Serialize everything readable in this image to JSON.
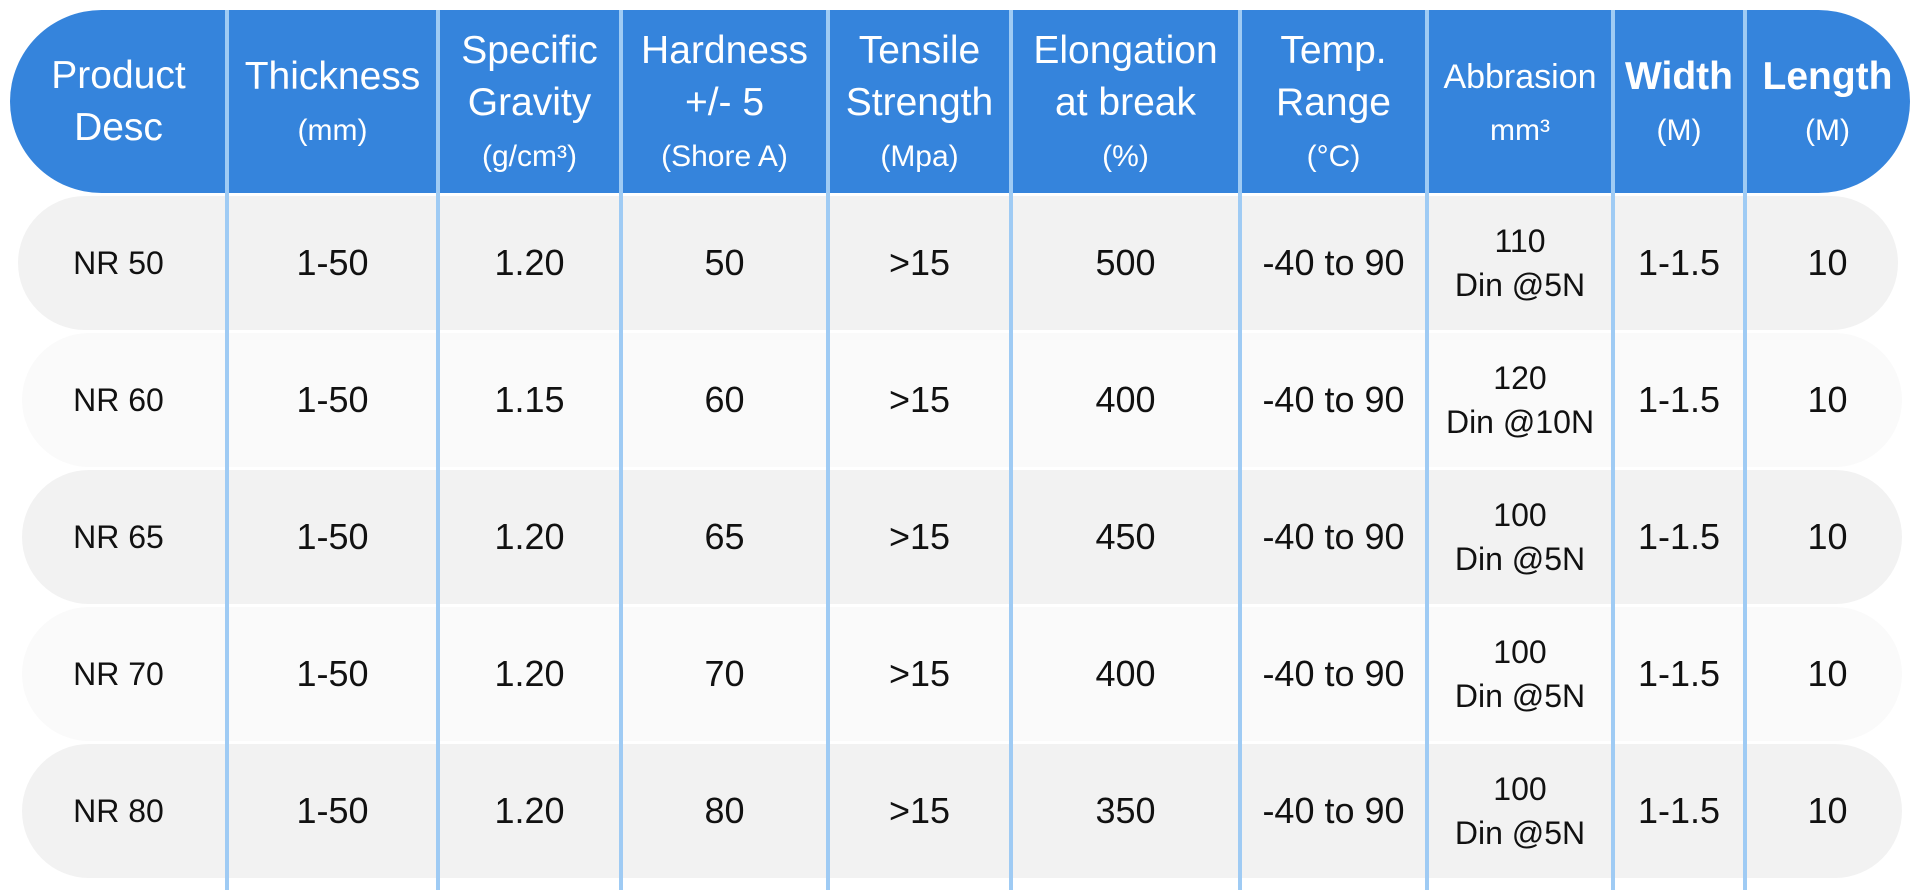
{
  "table": {
    "header": [
      {
        "title": [
          "Product",
          "Desc"
        ]
      },
      {
        "title": [
          "Thickness"
        ],
        "unit": "(mm)"
      },
      {
        "title": [
          "Specific",
          "Gravity"
        ],
        "unit": "(g/cm³)"
      },
      {
        "title": [
          "Hardness",
          "+/- 5"
        ],
        "unit": "(Shore A)"
      },
      {
        "title": [
          "Tensile",
          "Strength"
        ],
        "unit": "(Mpa)"
      },
      {
        "title": [
          "Elongation",
          "at break"
        ],
        "unit": "(%)"
      },
      {
        "title": [
          "Temp.",
          "Range"
        ],
        "unit": "(°C)"
      },
      {
        "title": [
          "Abbrasion"
        ],
        "unit": "mm³"
      },
      {
        "title": [
          "Width"
        ],
        "unit": "(M)"
      },
      {
        "title": [
          "Length"
        ],
        "unit": "(M)"
      }
    ],
    "rows": [
      [
        "NR 50",
        "1-50",
        "1.20",
        "50",
        ">15",
        "500",
        "-40 to 90",
        [
          "110",
          "Din @5N"
        ],
        "1-1.5",
        "10"
      ],
      [
        "NR 60",
        "1-50",
        "1.15",
        "60",
        ">15",
        "400",
        "-40 to 90",
        [
          "120",
          "Din @10N"
        ],
        "1-1.5",
        "10"
      ],
      [
        "NR 65",
        "1-50",
        "1.20",
        "65",
        ">15",
        "450",
        "-40 to 90",
        [
          "100",
          "Din @5N"
        ],
        "1-1.5",
        "10"
      ],
      [
        "NR 70",
        "1-50",
        "1.20",
        "70",
        ">15",
        "400",
        "-40 to 90",
        [
          "100",
          "Din @5N"
        ],
        "1-1.5",
        "10"
      ],
      [
        "NR 80",
        "1-50",
        "1.20",
        "80",
        ">15",
        "350",
        "-40 to 90",
        [
          "100",
          "Din @5N"
        ],
        "1-1.5",
        "10"
      ]
    ]
  }
}
